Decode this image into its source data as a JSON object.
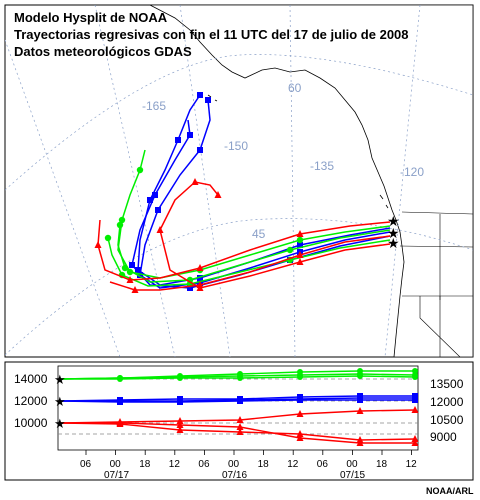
{
  "title": {
    "line1": "Modelo Hysplit de NOAA",
    "line2": "Trayectorias regresivas con fin el 11 UTC del 17 de julio de 2008",
    "line3": "Datos meteorológicos GDAS"
  },
  "map": {
    "longitude_labels": [
      "-165",
      "-150",
      "-135",
      "-120"
    ],
    "latitude_labels": [
      "60",
      "45"
    ],
    "series_colors": {
      "red": "#ff0000",
      "blue": "#0000ff",
      "green": "#00ee00"
    },
    "grid_color": "#8aa0c8"
  },
  "vertical_panel": {
    "left_altitudes": [
      "14000",
      "12000",
      "10000"
    ],
    "right_altitudes": [
      "13500",
      "12000",
      "10500",
      "9000"
    ],
    "hour_ticks": [
      "06",
      "00",
      "18",
      "12",
      "06",
      "00",
      "18",
      "12",
      "06",
      "00",
      "18",
      "12"
    ],
    "date_labels": [
      "07/17",
      "07/16",
      "07/15"
    ]
  },
  "credit": "NOAA/ARL"
}
